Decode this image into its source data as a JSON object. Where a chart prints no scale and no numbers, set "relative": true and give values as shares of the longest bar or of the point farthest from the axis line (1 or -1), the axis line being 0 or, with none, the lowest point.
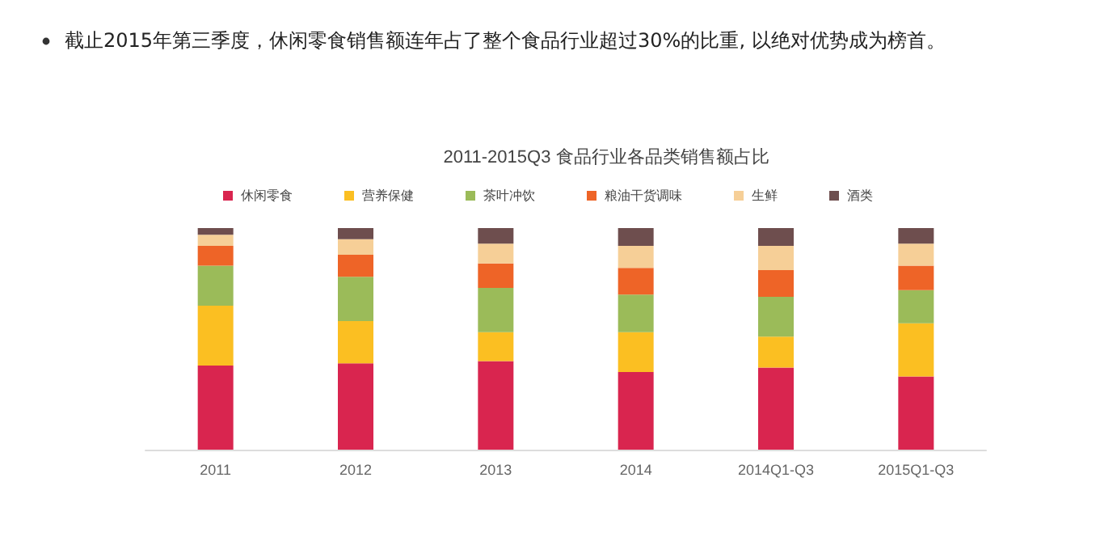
{
  "chart_data": {
    "type": "bar",
    "title": "2011-2015Q3 食品行业各品类销售额占比",
    "annotations": [
      "截止2015年第三季度，休闲零食销售额连年占了整个食品行业超过30%的比重, 以绝对优势成为榜首。"
    ],
    "categories": [
      "2011",
      "2012",
      "2013",
      "2014",
      "2014Q1-Q3",
      "2015Q1-Q3"
    ],
    "stacked": true,
    "relative": true,
    "legend": "top",
    "series": [
      {
        "name": "休闲零食",
        "color": "#d9254f",
        "values": [
          0.38,
          0.39,
          0.4,
          0.35,
          0.37,
          0.33
        ]
      },
      {
        "name": "营养保健",
        "color": "#fbbf22",
        "values": [
          0.27,
          0.19,
          0.13,
          0.18,
          0.14,
          0.24
        ]
      },
      {
        "name": "茶叶冲饮",
        "color": "#9bbb59",
        "values": [
          0.18,
          0.2,
          0.2,
          0.17,
          0.18,
          0.15
        ]
      },
      {
        "name": "粮油干货调味",
        "color": "#ee6427",
        "values": [
          0.09,
          0.1,
          0.11,
          0.12,
          0.12,
          0.11
        ]
      },
      {
        "name": "生鲜",
        "color": "#f6cf97",
        "values": [
          0.05,
          0.07,
          0.09,
          0.1,
          0.11,
          0.1
        ]
      },
      {
        "name": "酒类",
        "color": "#6e4e4e",
        "values": [
          0.03,
          0.05,
          0.07,
          0.08,
          0.08,
          0.07
        ]
      }
    ]
  }
}
